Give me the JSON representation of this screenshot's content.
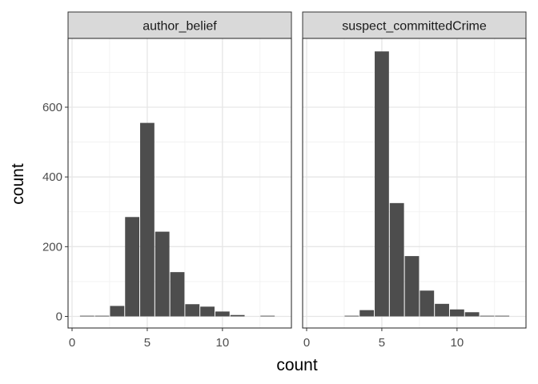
{
  "chart_data": {
    "type": "bar",
    "layout": "facet",
    "xlabel": "count",
    "ylabel": "count",
    "xlim": [
      0,
      14
    ],
    "ylim": [
      0,
      800
    ],
    "x_ticks": [
      0,
      5,
      10
    ],
    "y_ticks": [
      0,
      200,
      400,
      600
    ],
    "grid": true,
    "bar_color": "#4d4d4d",
    "strip_color": "#d9d9d9",
    "panels": [
      {
        "strip": "author_belief",
        "x": [
          1,
          2,
          3,
          4,
          5,
          6,
          7,
          8,
          9,
          10,
          11,
          13
        ],
        "values": [
          2,
          2,
          30,
          285,
          555,
          243,
          127,
          35,
          28,
          14,
          4,
          2
        ]
      },
      {
        "strip": "suspect_committedCrime",
        "x": [
          3,
          4,
          5,
          6,
          7,
          8,
          9,
          10,
          11,
          12,
          13
        ],
        "values": [
          2,
          18,
          760,
          325,
          173,
          74,
          36,
          20,
          12,
          2,
          2
        ]
      }
    ]
  }
}
